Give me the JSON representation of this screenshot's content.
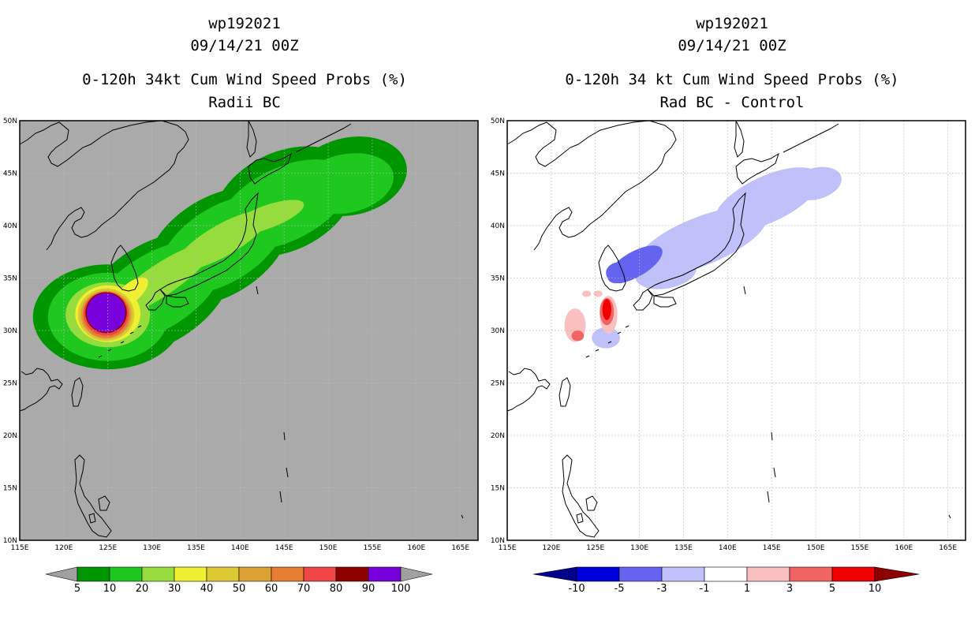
{
  "left_panel": {
    "storm_id": "wp192021",
    "datetime": "09/14/21 00Z",
    "title": "0-120h 34kt Cum Wind Speed Probs (%)",
    "subtitle": "Radii BC"
  },
  "right_panel": {
    "storm_id": "wp192021",
    "datetime": "09/14/21 00Z",
    "title": "0-120h 34 kt Cum Wind Speed Probs (%)",
    "subtitle": "Rad BC - Control"
  },
  "map_axes": {
    "lon_range": [
      115,
      167
    ],
    "lat_range": [
      10,
      50
    ],
    "lon_ticks": [
      "115E",
      "120E",
      "125E",
      "130E",
      "135E",
      "140E",
      "145E",
      "150E",
      "155E",
      "160E",
      "165E"
    ],
    "lat_ticks": [
      "10N",
      "15N",
      "20N",
      "25N",
      "30N",
      "35N",
      "40N",
      "45N",
      "50N"
    ]
  },
  "left_colorbar": {
    "colors": [
      "#009600",
      "#1ec81e",
      "#96dc3c",
      "#f0f032",
      "#dcc832",
      "#dca032",
      "#e67d32",
      "#f04646",
      "#8c0000",
      "#7800dc"
    ],
    "labels": [
      "5",
      "10",
      "20",
      "30",
      "40",
      "50",
      "60",
      "70",
      "80",
      "90",
      "100"
    ],
    "arrow_color": "#a0a0a0"
  },
  "right_colorbar": {
    "colors": [
      "#0000dc",
      "#6464f0",
      "#c0c0fa",
      "#ffffff",
      "#fac0c0",
      "#f06464",
      "#f00000"
    ],
    "low_arrow_color": "#00008c",
    "high_arrow_color": "#8c0000",
    "labels": [
      "-10",
      "-5",
      "-3",
      "-1",
      "1",
      "3",
      "5",
      "10"
    ]
  },
  "chart_data": [
    {
      "type": "heatmap",
      "title": "0-120h 34kt Cum Wind Speed Probs (%)",
      "subtitle": "Radii BC",
      "units": "%",
      "background": "#aaaaaa",
      "xlim": [
        115,
        167
      ],
      "ylim": [
        10,
        50
      ],
      "contours": [
        {
          "level": 5,
          "color": "#009600",
          "ellipses": [
            {
              "lon": 125.0,
              "lat": 31.3,
              "rx": 8.5,
              "ry": 5.0,
              "rot": 0
            },
            {
              "lon": 130.5,
              "lat": 33.5,
              "rx": 9.5,
              "ry": 4.8,
              "rot": 32
            },
            {
              "lon": 137.5,
              "lat": 38.0,
              "rx": 9.0,
              "ry": 4.7,
              "rot": 32
            },
            {
              "lon": 145.0,
              "lat": 42.3,
              "rx": 8.5,
              "ry": 4.7,
              "rot": 26
            },
            {
              "lon": 152.5,
              "lat": 44.7,
              "rx": 6.5,
              "ry": 3.7,
              "rot": 12
            }
          ]
        },
        {
          "level": 10,
          "color": "#1ec81e",
          "ellipses": [
            {
              "lon": 125.0,
              "lat": 31.3,
              "rx": 6.8,
              "ry": 4.2,
              "rot": 0
            },
            {
              "lon": 130.5,
              "lat": 33.7,
              "rx": 8.5,
              "ry": 3.6,
              "rot": 32
            },
            {
              "lon": 138.0,
              "lat": 38.2,
              "rx": 8.0,
              "ry": 3.6,
              "rot": 32
            },
            {
              "lon": 145.0,
              "lat": 42.0,
              "rx": 8.0,
              "ry": 3.5,
              "rot": 26
            },
            {
              "lon": 152.0,
              "lat": 44.0,
              "rx": 5.5,
              "ry": 2.8,
              "rot": 12
            }
          ]
        },
        {
          "level": 20,
          "color": "#96dc3c",
          "ellipses": [
            {
              "lon": 125.0,
              "lat": 31.5,
              "rx": 4.8,
              "ry": 3.1,
              "rot": 0
            },
            {
              "lon": 131.0,
              "lat": 34.8,
              "rx": 7.0,
              "ry": 1.5,
              "rot": 34
            },
            {
              "lon": 138.0,
              "lat": 38.6,
              "rx": 6.0,
              "ry": 1.5,
              "rot": 30
            },
            {
              "lon": 143.0,
              "lat": 40.8,
              "rx": 4.5,
              "ry": 1.1,
              "rot": 20
            }
          ]
        },
        {
          "level": 30,
          "color": "#f0f032",
          "ellipses": [
            {
              "lon": 125.0,
              "lat": 31.6,
              "rx": 3.7,
              "ry": 2.7,
              "rot": 0
            },
            {
              "lon": 127.6,
              "lat": 33.6,
              "rx": 2.4,
              "ry": 0.9,
              "rot": 40
            }
          ]
        },
        {
          "level": 40,
          "color": "#dcc832",
          "ellipses": [
            {
              "lon": 124.8,
              "lat": 31.5,
              "rx": 3.2,
              "ry": 2.5,
              "rot": 0
            }
          ]
        },
        {
          "level": 50,
          "color": "#dca032",
          "ellipses": [
            {
              "lon": 124.8,
              "lat": 31.5,
              "rx": 2.9,
              "ry": 2.3,
              "rot": 0
            }
          ]
        },
        {
          "level": 60,
          "color": "#e67d32",
          "ellipses": [
            {
              "lon": 124.8,
              "lat": 31.5,
              "rx": 2.7,
              "ry": 2.2,
              "rot": 0
            }
          ]
        },
        {
          "level": 70,
          "color": "#f04646",
          "ellipses": [
            {
              "lon": 124.8,
              "lat": 31.6,
              "rx": 2.55,
              "ry": 2.1,
              "rot": 0
            }
          ]
        },
        {
          "level": 80,
          "color": "#8c0000",
          "ellipses": [
            {
              "lon": 124.8,
              "lat": 31.7,
              "rx": 2.35,
              "ry": 1.95,
              "rot": 0
            }
          ]
        },
        {
          "level": 90,
          "color": "#7800dc",
          "ellipses": [
            {
              "lon": 124.8,
              "lat": 31.7,
              "rx": 2.2,
              "ry": 1.85,
              "rot": 0
            }
          ]
        }
      ]
    },
    {
      "type": "heatmap",
      "title": "0-120h 34 kt Cum Wind Speed Probs (%)",
      "subtitle": "Rad BC - Control",
      "units": "% difference",
      "background": "#ffffff",
      "xlim": [
        115,
        167
      ],
      "ylim": [
        10,
        50
      ],
      "contours": [
        {
          "level": -1,
          "color": "#c0c0fa",
          "ellipses": [
            {
              "lon": 133.0,
              "lat": 35.5,
              "rx": 3.5,
              "ry": 1.5,
              "rot": 10
            },
            {
              "lon": 137.0,
              "lat": 38.5,
              "rx": 8.0,
              "ry": 2.3,
              "rot": 22
            },
            {
              "lon": 144.5,
              "lat": 42.5,
              "rx": 6.5,
              "ry": 2.2,
              "rot": 25
            },
            {
              "lon": 150.0,
              "lat": 44.0,
              "rx": 3.0,
              "ry": 1.5,
              "rot": 15
            },
            {
              "lon": 126.2,
              "lat": 29.3,
              "rx": 1.6,
              "ry": 1.0,
              "rot": 0
            }
          ]
        },
        {
          "level": -3,
          "color": "#6464f0",
          "ellipses": [
            {
              "lon": 129.5,
              "lat": 36.3,
              "rx": 3.5,
              "ry": 1.2,
              "rot": 30
            },
            {
              "lon": 127.7,
              "lat": 35.5,
              "rx": 1.5,
              "ry": 1.0,
              "rot": 0
            }
          ]
        },
        {
          "level": 1,
          "color": "#fac0c0",
          "ellipses": [
            {
              "lon": 122.7,
              "lat": 30.5,
              "rx": 1.2,
              "ry": 1.6,
              "rot": 0
            },
            {
              "lon": 126.5,
              "lat": 31.5,
              "rx": 1.0,
              "ry": 1.8,
              "rot": 0
            },
            {
              "lon": 124.0,
              "lat": 33.5,
              "rx": 0.5,
              "ry": 0.3,
              "rot": 0
            },
            {
              "lon": 125.3,
              "lat": 33.5,
              "rx": 0.5,
              "ry": 0.3,
              "rot": 0
            }
          ]
        },
        {
          "level": 3,
          "color": "#f06464",
          "ellipses": [
            {
              "lon": 123.0,
              "lat": 29.5,
              "rx": 0.7,
              "ry": 0.5,
              "rot": 0
            },
            {
              "lon": 126.3,
              "lat": 31.8,
              "rx": 0.8,
              "ry": 1.3,
              "rot": 0
            }
          ]
        },
        {
          "level": 5,
          "color": "#f00000",
          "ellipses": [
            {
              "lon": 126.3,
              "lat": 32.0,
              "rx": 0.5,
              "ry": 1.0,
              "rot": 0
            }
          ]
        }
      ]
    }
  ]
}
